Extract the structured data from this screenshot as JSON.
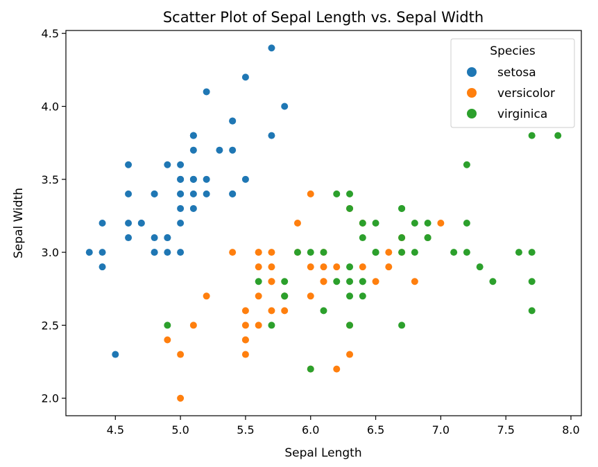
{
  "chart_data": {
    "type": "scatter",
    "title": "Scatter Plot of Sepal Length vs. Sepal Width",
    "xlabel": "Sepal Length",
    "ylabel": "Sepal Width",
    "xlim": [
      4.12,
      8.08
    ],
    "ylim": [
      1.88,
      4.52
    ],
    "xticks": [
      4.5,
      5.0,
      5.5,
      6.0,
      6.5,
      7.0,
      7.5,
      8.0
    ],
    "xtick_labels": [
      "4.5",
      "5.0",
      "5.5",
      "6.0",
      "6.5",
      "7.0",
      "7.5",
      "8.0"
    ],
    "yticks": [
      2.0,
      2.5,
      3.0,
      3.5,
      4.0,
      4.5
    ],
    "ytick_labels": [
      "2.0",
      "2.5",
      "3.0",
      "3.5",
      "4.0",
      "4.5"
    ],
    "grid": false,
    "legend": {
      "title": "Species",
      "position": "top-right"
    },
    "series": [
      {
        "name": "setosa",
        "color": "#1f77b4",
        "points": [
          [
            5.1,
            3.5
          ],
          [
            4.9,
            3.0
          ],
          [
            4.7,
            3.2
          ],
          [
            4.6,
            3.1
          ],
          [
            5.0,
            3.6
          ],
          [
            5.4,
            3.9
          ],
          [
            4.6,
            3.4
          ],
          [
            5.0,
            3.4
          ],
          [
            4.4,
            2.9
          ],
          [
            4.9,
            3.1
          ],
          [
            5.4,
            3.7
          ],
          [
            4.8,
            3.4
          ],
          [
            4.8,
            3.0
          ],
          [
            4.3,
            3.0
          ],
          [
            5.8,
            4.0
          ],
          [
            5.7,
            4.4
          ],
          [
            5.4,
            3.9
          ],
          [
            5.1,
            3.5
          ],
          [
            5.7,
            3.8
          ],
          [
            5.1,
            3.8
          ],
          [
            5.4,
            3.4
          ],
          [
            5.1,
            3.7
          ],
          [
            4.6,
            3.6
          ],
          [
            5.1,
            3.3
          ],
          [
            4.8,
            3.4
          ],
          [
            5.0,
            3.0
          ],
          [
            5.0,
            3.4
          ],
          [
            5.2,
            3.5
          ],
          [
            5.2,
            3.4
          ],
          [
            4.7,
            3.2
          ],
          [
            4.8,
            3.1
          ],
          [
            5.4,
            3.4
          ],
          [
            5.2,
            4.1
          ],
          [
            5.5,
            4.2
          ],
          [
            4.9,
            3.1
          ],
          [
            5.0,
            3.2
          ],
          [
            5.5,
            3.5
          ],
          [
            4.9,
            3.6
          ],
          [
            4.4,
            3.0
          ],
          [
            5.1,
            3.4
          ],
          [
            5.0,
            3.5
          ],
          [
            4.5,
            2.3
          ],
          [
            4.4,
            3.2
          ],
          [
            5.0,
            3.5
          ],
          [
            5.1,
            3.8
          ],
          [
            4.8,
            3.0
          ],
          [
            5.1,
            3.8
          ],
          [
            4.6,
            3.2
          ],
          [
            5.3,
            3.7
          ],
          [
            5.0,
            3.3
          ]
        ]
      },
      {
        "name": "versicolor",
        "color": "#ff7f0e",
        "points": [
          [
            7.0,
            3.2
          ],
          [
            6.4,
            3.2
          ],
          [
            6.9,
            3.1
          ],
          [
            5.5,
            2.3
          ],
          [
            6.5,
            2.8
          ],
          [
            5.7,
            2.8
          ],
          [
            6.3,
            3.3
          ],
          [
            4.9,
            2.4
          ],
          [
            6.6,
            2.9
          ],
          [
            5.2,
            2.7
          ],
          [
            5.0,
            2.0
          ],
          [
            5.9,
            3.0
          ],
          [
            6.0,
            2.2
          ],
          [
            6.1,
            2.9
          ],
          [
            5.6,
            2.9
          ],
          [
            6.7,
            3.1
          ],
          [
            5.6,
            3.0
          ],
          [
            5.8,
            2.7
          ],
          [
            6.2,
            2.2
          ],
          [
            5.6,
            2.5
          ],
          [
            5.9,
            3.2
          ],
          [
            6.1,
            2.8
          ],
          [
            6.3,
            2.5
          ],
          [
            6.1,
            2.8
          ],
          [
            6.4,
            2.9
          ],
          [
            6.6,
            3.0
          ],
          [
            6.8,
            2.8
          ],
          [
            6.7,
            3.0
          ],
          [
            6.0,
            2.9
          ],
          [
            5.7,
            2.6
          ],
          [
            5.5,
            2.4
          ],
          [
            5.5,
            2.4
          ],
          [
            5.8,
            2.7
          ],
          [
            6.0,
            2.7
          ],
          [
            5.4,
            3.0
          ],
          [
            6.0,
            3.4
          ],
          [
            6.7,
            3.1
          ],
          [
            6.3,
            2.3
          ],
          [
            5.6,
            3.0
          ],
          [
            5.5,
            2.5
          ],
          [
            5.5,
            2.6
          ],
          [
            6.1,
            3.0
          ],
          [
            5.8,
            2.6
          ],
          [
            5.0,
            2.3
          ],
          [
            5.6,
            2.7
          ],
          [
            5.7,
            3.0
          ],
          [
            5.7,
            2.9
          ],
          [
            6.2,
            2.9
          ],
          [
            5.1,
            2.5
          ],
          [
            5.7,
            2.8
          ]
        ]
      },
      {
        "name": "virginica",
        "color": "#2ca02c",
        "points": [
          [
            6.3,
            3.3
          ],
          [
            5.8,
            2.7
          ],
          [
            7.1,
            3.0
          ],
          [
            6.3,
            2.9
          ],
          [
            6.5,
            3.0
          ],
          [
            7.6,
            3.0
          ],
          [
            4.9,
            2.5
          ],
          [
            7.3,
            2.9
          ],
          [
            6.7,
            2.5
          ],
          [
            7.2,
            3.6
          ],
          [
            6.5,
            3.2
          ],
          [
            6.4,
            2.7
          ],
          [
            6.8,
            3.0
          ],
          [
            5.7,
            2.5
          ],
          [
            5.8,
            2.8
          ],
          [
            6.4,
            3.2
          ],
          [
            6.5,
            3.0
          ],
          [
            7.7,
            3.8
          ],
          [
            7.7,
            2.6
          ],
          [
            6.0,
            2.2
          ],
          [
            6.9,
            3.2
          ],
          [
            5.6,
            2.8
          ],
          [
            7.7,
            2.8
          ],
          [
            6.3,
            2.7
          ],
          [
            6.7,
            3.3
          ],
          [
            7.2,
            3.2
          ],
          [
            6.2,
            2.8
          ],
          [
            6.1,
            3.0
          ],
          [
            6.4,
            2.8
          ],
          [
            7.2,
            3.0
          ],
          [
            7.4,
            2.8
          ],
          [
            7.9,
            3.8
          ],
          [
            6.4,
            2.8
          ],
          [
            6.3,
            2.8
          ],
          [
            6.1,
            2.6
          ],
          [
            7.7,
            3.0
          ],
          [
            6.3,
            3.4
          ],
          [
            6.4,
            3.1
          ],
          [
            6.0,
            3.0
          ],
          [
            6.9,
            3.1
          ],
          [
            6.7,
            3.1
          ],
          [
            6.9,
            3.1
          ],
          [
            5.8,
            2.7
          ],
          [
            6.8,
            3.2
          ],
          [
            6.7,
            3.3
          ],
          [
            6.7,
            3.0
          ],
          [
            6.3,
            2.5
          ],
          [
            6.5,
            3.0
          ],
          [
            6.2,
            3.4
          ],
          [
            5.9,
            3.0
          ]
        ]
      }
    ]
  }
}
